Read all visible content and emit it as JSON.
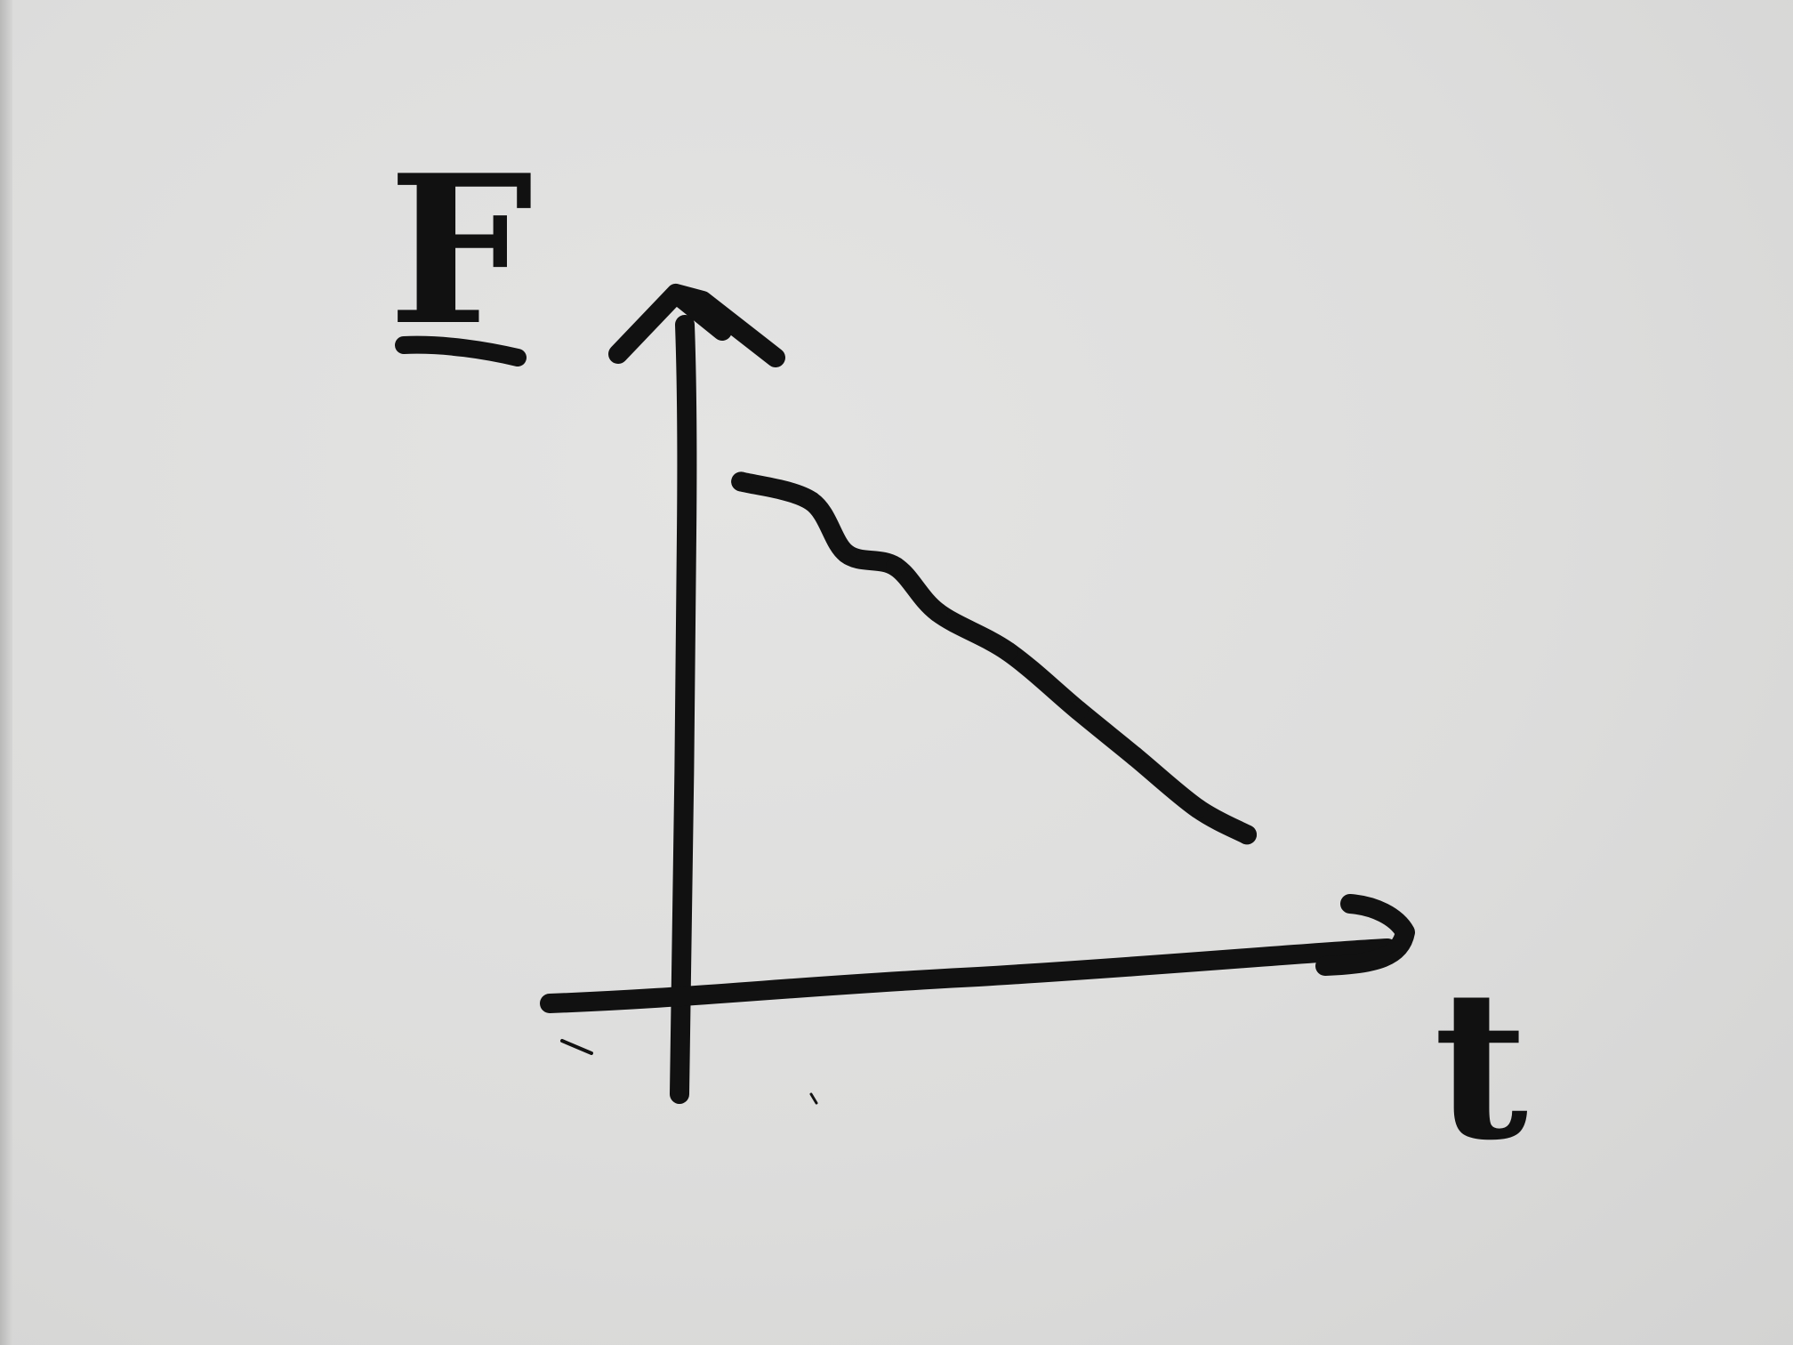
{
  "chart_data": {
    "type": "line",
    "xlabel": "t",
    "ylabel": "F",
    "xlim": [
      0,
      10
    ],
    "ylim": [
      0,
      10
    ],
    "grid": false,
    "series": [
      {
        "x": [
          0.8,
          1.8,
          2.3,
          3.0,
          3.6,
          4.6,
          5.6,
          6.4,
          7.3,
          8.0
        ],
        "values": [
          7.6,
          7.3,
          6.5,
          6.3,
          5.6,
          5.0,
          4.1,
          3.4,
          2.6,
          2.2
        ]
      }
    ],
    "colors": {
      "ink": "#111111",
      "paper": "#dcdcdb"
    }
  }
}
